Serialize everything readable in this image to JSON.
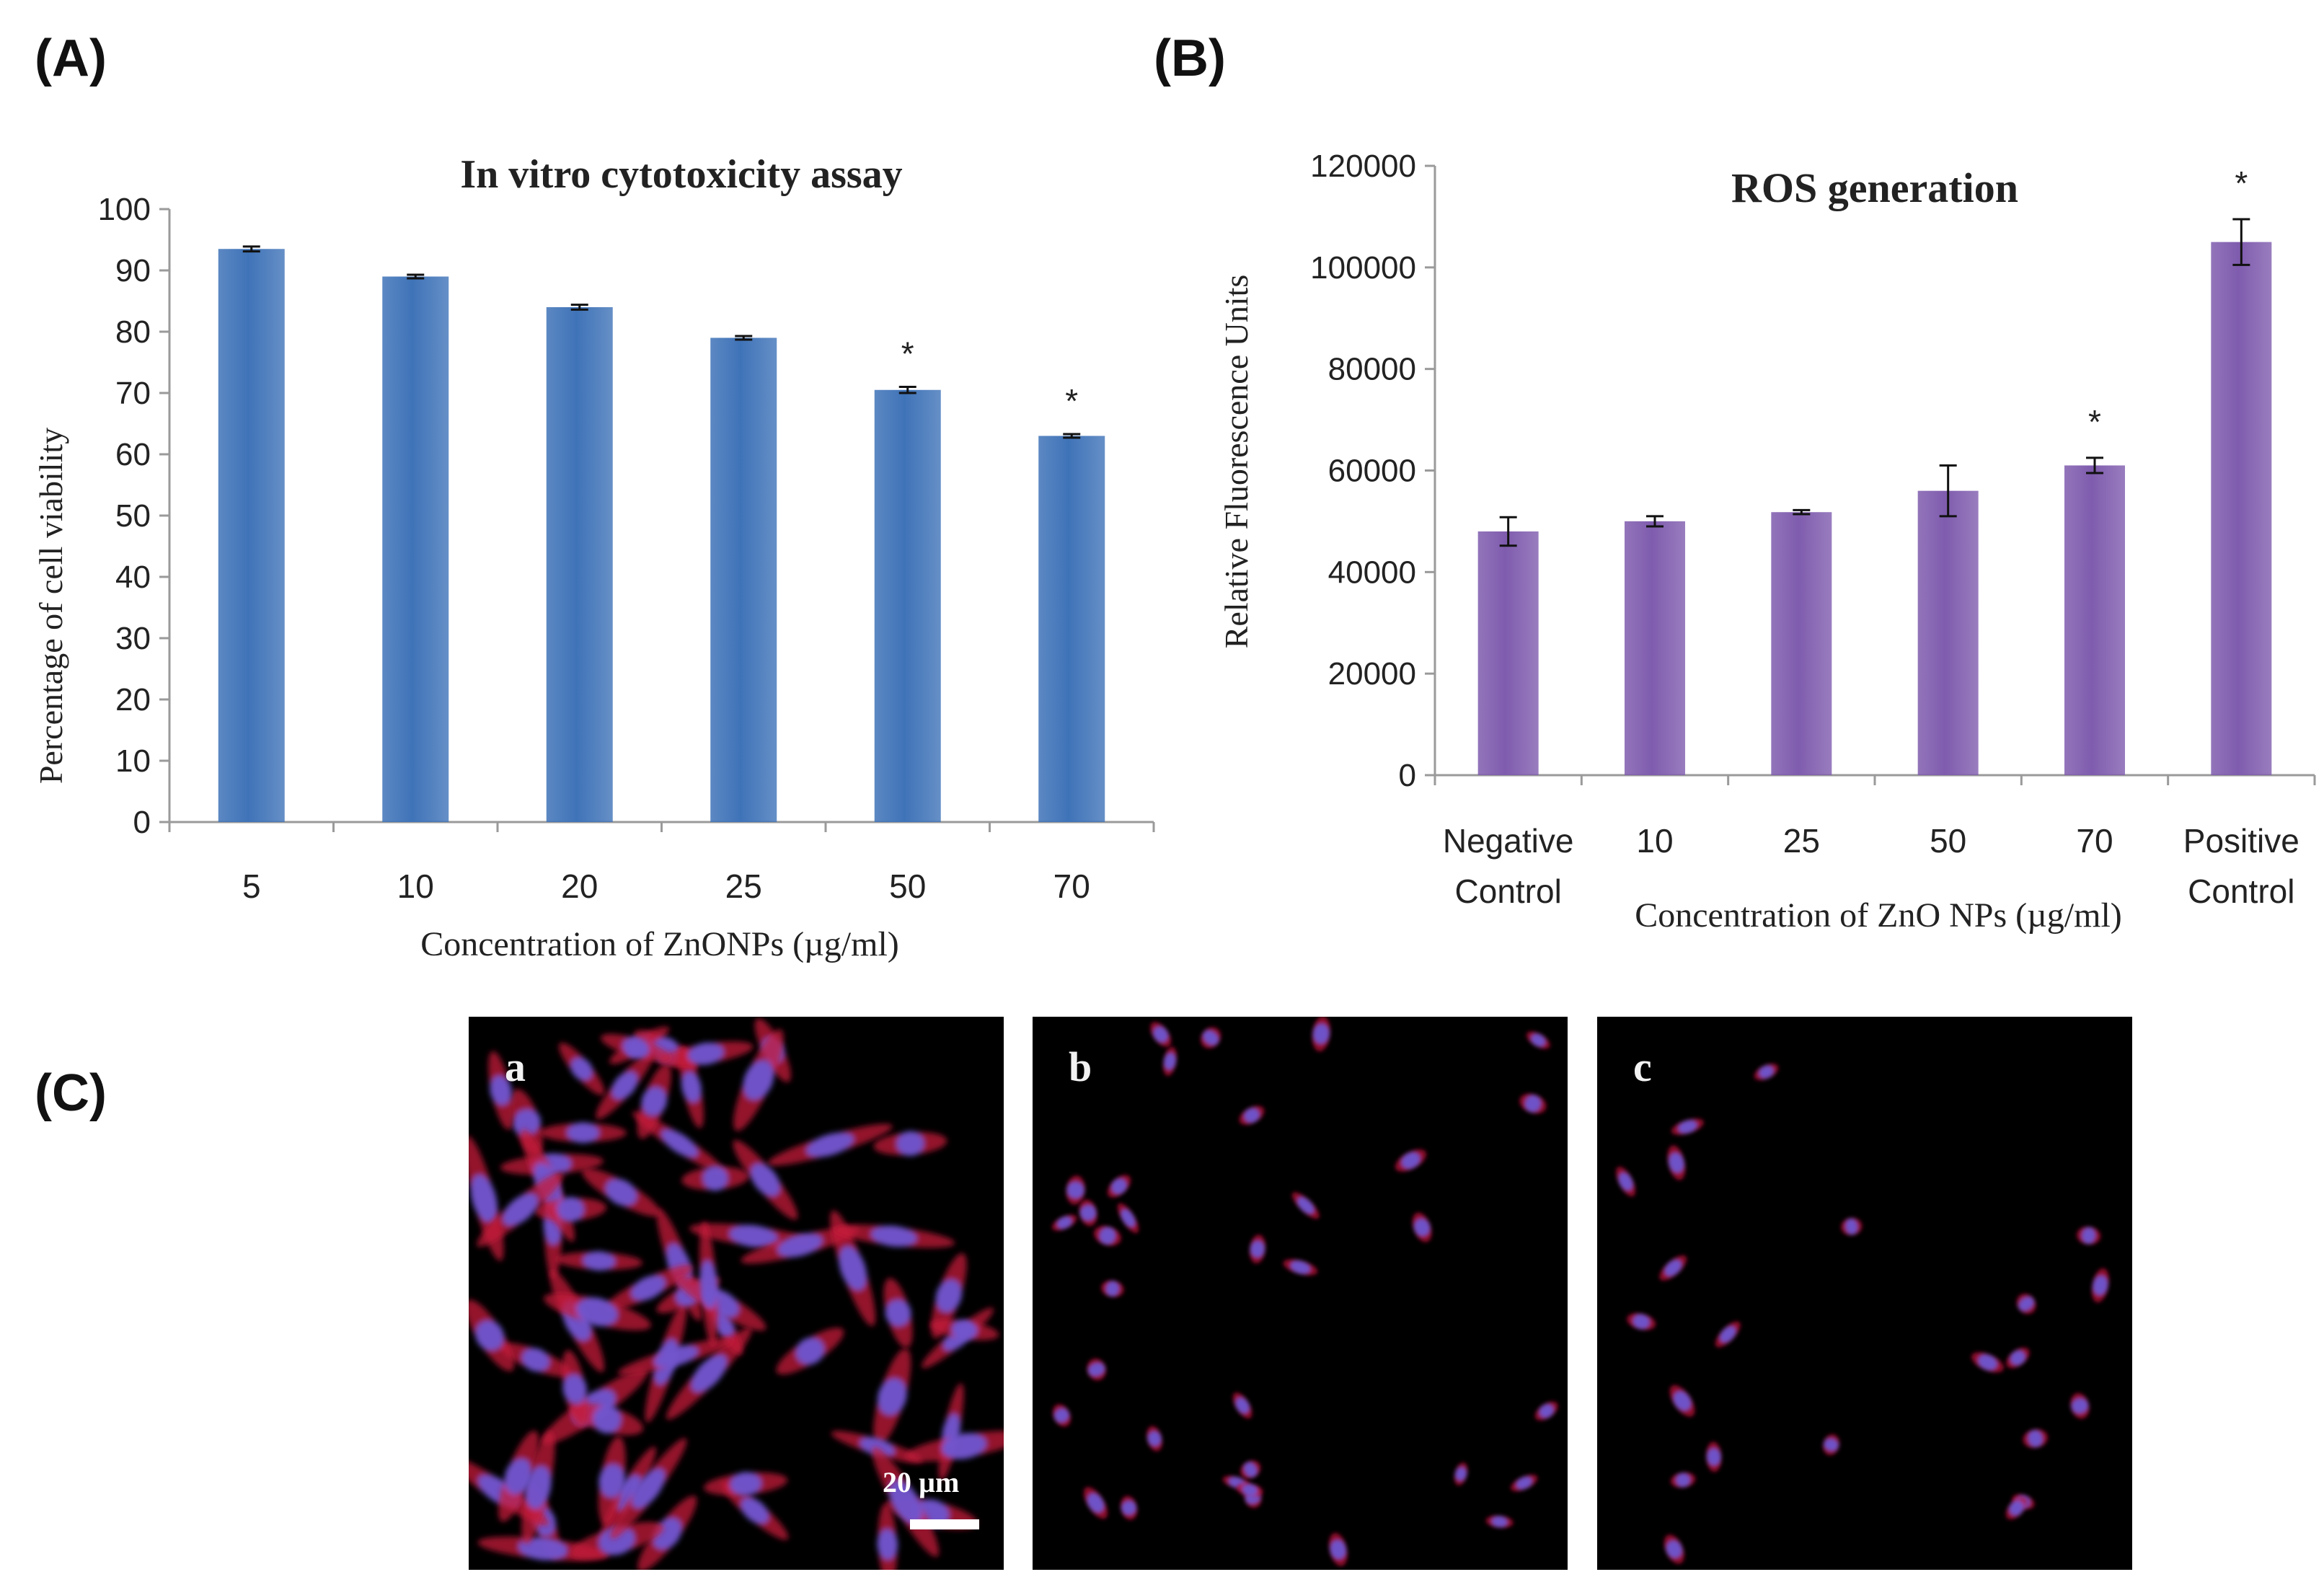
{
  "panels": {
    "A": "(A)",
    "B": "(B)",
    "C": "(C)"
  },
  "colors": {
    "bar_a": "#3f73b8",
    "bar_b": "#7f5cae",
    "axis": "#9a9a9a"
  },
  "chart_data": [
    {
      "id": "A",
      "type": "bar",
      "title": "In vitro cytotoxicity assay",
      "xlabel": "Concentration of ZnONPs (µg/ml)",
      "ylabel": "Percentage of cell viability",
      "ylim": [
        0,
        100
      ],
      "yticks": [
        "0",
        "10",
        "20",
        "30",
        "40",
        "50",
        "60",
        "70",
        "80",
        "90",
        "100"
      ],
      "categories": [
        "5",
        "10",
        "20",
        "25",
        "50",
        "70"
      ],
      "values": [
        93.5,
        89,
        84,
        79,
        70.5,
        63
      ],
      "errors": [
        0.4,
        0.3,
        0.4,
        0.3,
        0.5,
        0.3
      ],
      "significant": [
        false,
        false,
        false,
        false,
        true,
        true
      ],
      "sig_marker": "*"
    },
    {
      "id": "B",
      "type": "bar",
      "title": "ROS generation",
      "xlabel": "Concentration of ZnO NPs (µg/ml)",
      "ylabel": "Relative Fluorescence Units",
      "ylim": [
        0,
        120000
      ],
      "yticks": [
        "0",
        "20000",
        "40000",
        "60000",
        "80000",
        "100000",
        "120000"
      ],
      "categories": [
        [
          "Negative",
          "Control"
        ],
        [
          "10"
        ],
        [
          "25"
        ],
        [
          "50"
        ],
        [
          "70"
        ],
        [
          "Positive",
          "Control"
        ]
      ],
      "values": [
        48000,
        50000,
        51800,
        56000,
        61000,
        105000
      ],
      "errors": [
        2800,
        1000,
        400,
        5000,
        1500,
        4500
      ],
      "significant": [
        false,
        false,
        false,
        false,
        true,
        true
      ],
      "sig_marker": "*"
    }
  ],
  "micrographs": [
    {
      "letter": "a"
    },
    {
      "letter": "b"
    },
    {
      "letter": "c"
    }
  ],
  "scale_bar_label": "20 µm"
}
